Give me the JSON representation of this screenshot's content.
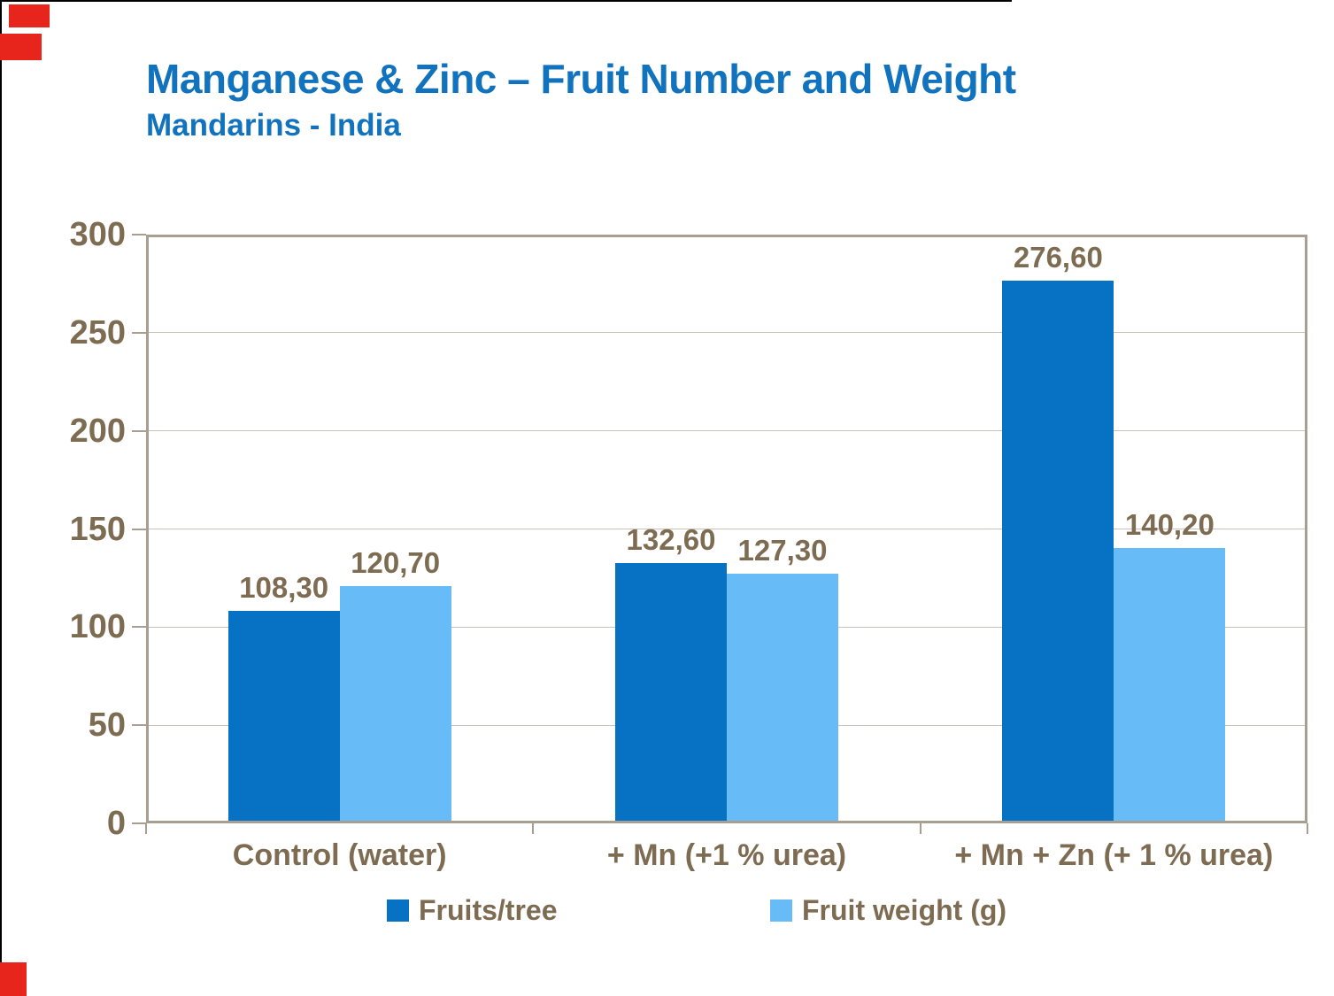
{
  "slide": {
    "background": "#FFFFFF",
    "edge_line_color": "#000000",
    "redaction_color": "#E8251D",
    "title": "Manganese & Zinc – Fruit Number and Weight",
    "subtitle": "Mandarins - India",
    "title_color": "#1173BE"
  },
  "chart_data": {
    "type": "bar",
    "title": "Manganese & Zinc – Fruit Number and Weight",
    "subtitle": "Mandarins - India",
    "categories": [
      "Control (water)",
      "+ Mn (+1 % urea)",
      "+ Mn + Zn (+ 1 % urea)"
    ],
    "series": [
      {
        "name": "Fruits/tree",
        "color": "#0772C3",
        "values": [
          108.3,
          132.6,
          276.6
        ],
        "data_labels": [
          "108,30",
          "132,60",
          "276,60"
        ]
      },
      {
        "name": "Fruit weight (g)",
        "color": "#67BCF7",
        "values": [
          120.7,
          127.3,
          140.2
        ],
        "data_labels": [
          "120,70",
          "127,30",
          "140,20"
        ]
      }
    ],
    "ylim": [
      0,
      300
    ],
    "ytick_step": 50,
    "ytick_labels": [
      "0",
      "50",
      "100",
      "150",
      "200",
      "250",
      "300"
    ],
    "grid": true,
    "legend_position": "bottom",
    "text_color": "#7E6C52",
    "axis_color": "#A89E91",
    "grid_color": "#CCC3B8"
  }
}
